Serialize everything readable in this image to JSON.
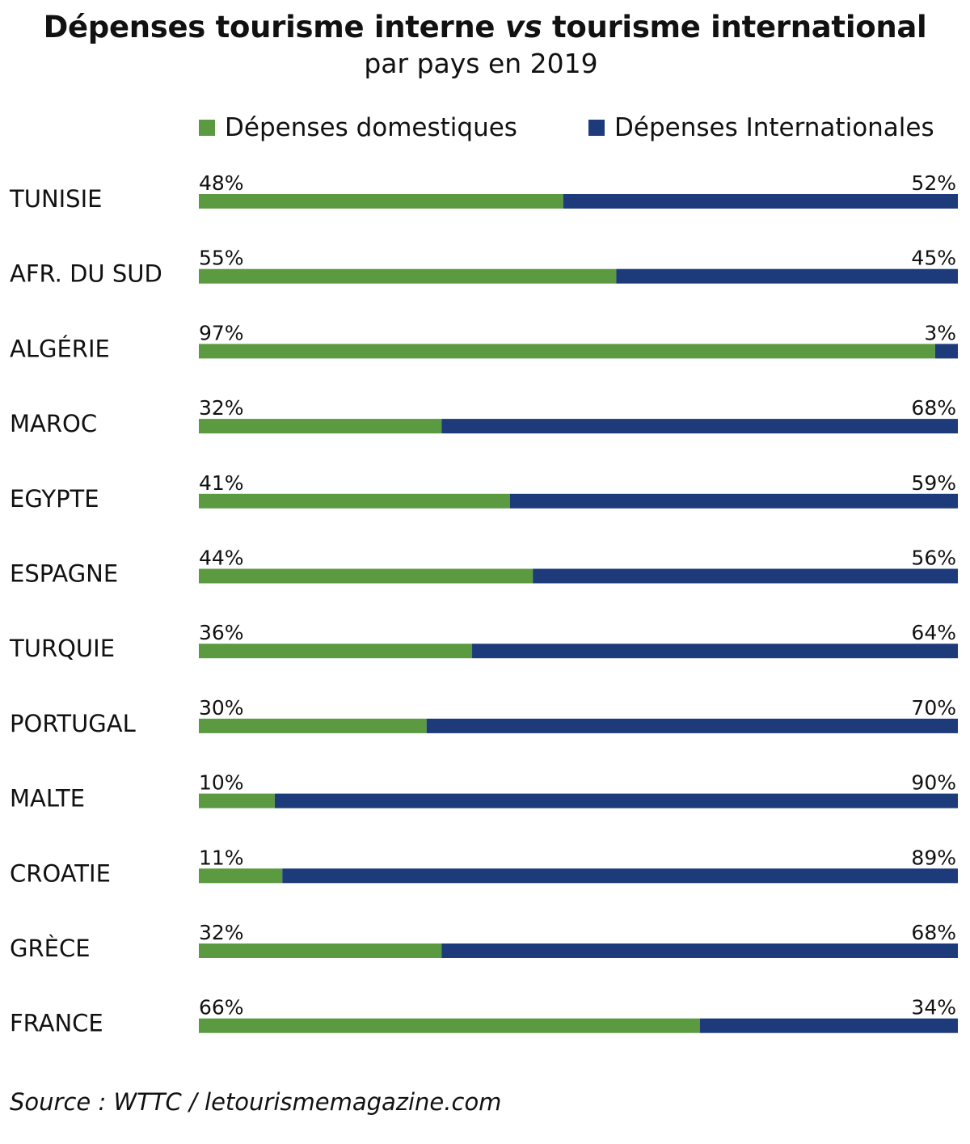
{
  "header": {
    "title_part1": "Dépenses tourisme interne ",
    "title_em": "vs",
    "title_part2": " tourisme international",
    "subtitle": "par pays en 2019"
  },
  "legend": {
    "domestic_label": "Dépenses domestiques",
    "international_label": "Dépenses Internationales"
  },
  "colors": {
    "domestic": "#5c9a41",
    "international": "#1d3a7a"
  },
  "chart_data": {
    "type": "bar",
    "stacked": true,
    "orientation": "horizontal",
    "categories": [
      "TUNISIE",
      "AFR. DU SUD",
      "ALGÉRIE",
      "MAROC",
      "EGYPTE",
      "ESPAGNE",
      "TURQUIE",
      "PORTUGAL",
      "MALTE",
      "CROATIE",
      "GRÈCE",
      "FRANCE"
    ],
    "series": [
      {
        "name": "Dépenses domestiques",
        "values": [
          48,
          55,
          97,
          32,
          41,
          44,
          36,
          30,
          10,
          11,
          32,
          66
        ]
      },
      {
        "name": "Dépenses Internationales",
        "values": [
          52,
          45,
          3,
          68,
          59,
          56,
          64,
          70,
          90,
          89,
          68,
          34
        ]
      }
    ],
    "unit": "%",
    "xlim": [
      0,
      100
    ],
    "legend_position": "top",
    "grid": false
  },
  "source": "Source : WTTC / letourismemagazine.com"
}
